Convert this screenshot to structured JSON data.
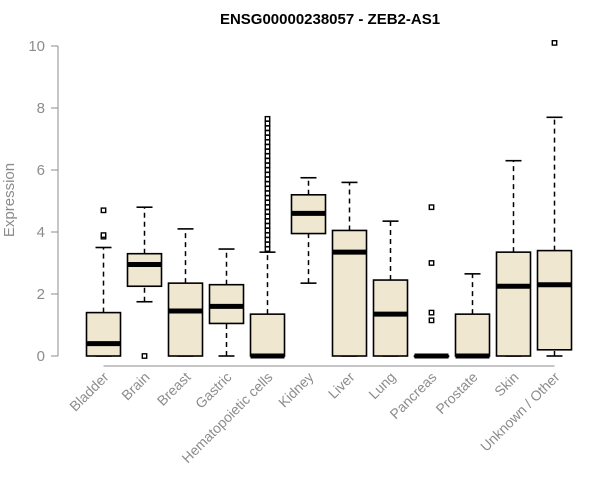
{
  "chart_data": {
    "type": "box",
    "title": "ENSG00000238057 - ZEB2-AS1",
    "ylabel": "Expression",
    "xlabel": "",
    "ylim": [
      0,
      10
    ],
    "yticks": [
      0,
      2,
      4,
      6,
      8,
      10
    ],
    "grid": false,
    "colors": {
      "box_fill": "#efe7cf",
      "box_stroke": "#000000",
      "axis": "#8c8c8c"
    },
    "categories": [
      "Bladder",
      "Brain",
      "Breast",
      "Gastric",
      "Hematopoietic cells",
      "Kidney",
      "Liver",
      "Lung",
      "Pancreas",
      "Prostate",
      "Skin",
      "Unknown / Other"
    ],
    "boxes": [
      {
        "category": "Bladder",
        "whisker_low": 0,
        "q1": 0,
        "median": 0.4,
        "q3": 1.4,
        "whisker_high": 3.5,
        "outliers": [
          3.85,
          3.9,
          4.7
        ]
      },
      {
        "category": "Brain",
        "whisker_low": 1.75,
        "q1": 2.25,
        "median": 2.95,
        "q3": 3.3,
        "whisker_high": 4.8,
        "outliers": [
          0.0
        ]
      },
      {
        "category": "Breast",
        "whisker_low": 0,
        "q1": 0,
        "median": 1.45,
        "q3": 2.35,
        "whisker_high": 4.1,
        "outliers": []
      },
      {
        "category": "Gastric",
        "whisker_low": 0,
        "q1": 1.05,
        "median": 1.6,
        "q3": 2.3,
        "whisker_high": 3.45,
        "outliers": []
      },
      {
        "category": "Hematopoietic cells",
        "whisker_low": 0,
        "q1": 0,
        "median": 0,
        "q3": 1.35,
        "whisker_high": 3.35,
        "outliers": [
          3.45,
          3.6,
          3.75,
          3.9,
          4.05,
          4.2,
          4.35,
          4.5,
          4.65,
          4.8,
          4.95,
          5.1,
          5.25,
          5.4,
          5.55,
          5.7,
          5.85,
          6.0,
          6.15,
          6.3,
          6.45,
          6.6,
          6.75,
          6.9,
          7.05,
          7.2,
          7.35,
          7.5,
          7.65
        ]
      },
      {
        "category": "Kidney",
        "whisker_low": 2.35,
        "q1": 3.95,
        "median": 4.6,
        "q3": 5.2,
        "whisker_high": 5.75,
        "outliers": []
      },
      {
        "category": "Liver",
        "whisker_low": 0,
        "q1": 0,
        "median": 3.35,
        "q3": 4.05,
        "whisker_high": 5.6,
        "outliers": []
      },
      {
        "category": "Lung",
        "whisker_low": 0,
        "q1": 0,
        "median": 1.35,
        "q3": 2.45,
        "whisker_high": 4.35,
        "outliers": []
      },
      {
        "category": "Pancreas",
        "whisker_low": 0,
        "q1": 0,
        "median": 0,
        "q3": 0,
        "whisker_high": 0,
        "outliers": [
          1.15,
          1.4,
          3.0,
          4.8
        ]
      },
      {
        "category": "Prostate",
        "whisker_low": 0,
        "q1": 0,
        "median": 0,
        "q3": 1.35,
        "whisker_high": 2.65,
        "outliers": []
      },
      {
        "category": "Skin",
        "whisker_low": 0,
        "q1": 0,
        "median": 2.25,
        "q3": 3.35,
        "whisker_high": 6.3,
        "outliers": []
      },
      {
        "category": "Unknown / Other",
        "whisker_low": 0,
        "q1": 0.2,
        "median": 2.3,
        "q3": 3.4,
        "whisker_high": 7.7,
        "outliers": [
          10.1
        ]
      }
    ]
  }
}
